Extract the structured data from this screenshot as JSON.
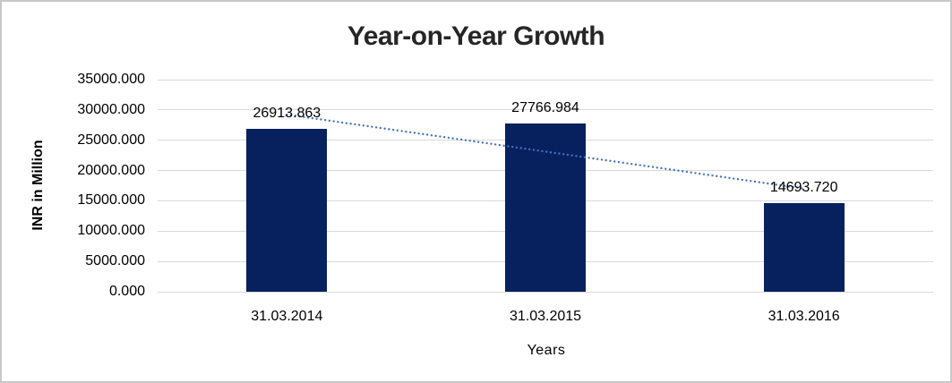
{
  "chart_data": {
    "type": "bar",
    "title": "Year-on-Year Growth",
    "categories": [
      "31.03.2014",
      "31.03.2015",
      "31.03.2016"
    ],
    "values": [
      26913.863,
      27766.984,
      14693.72
    ],
    "data_labels": [
      "26913.863",
      "27766.984",
      "14693.720"
    ],
    "xlabel": "Years",
    "ylabel": "INR in Million",
    "ylim": [
      0,
      35000
    ],
    "ytick_step": 5000,
    "yticks": [
      {
        "value": 0,
        "label": "0.000"
      },
      {
        "value": 5000,
        "label": "5000.000"
      },
      {
        "value": 10000,
        "label": "10000.000"
      },
      {
        "value": 15000,
        "label": "15000.000"
      },
      {
        "value": 20000,
        "label": "20000.000"
      },
      {
        "value": 25000,
        "label": "25000.000"
      },
      {
        "value": 30000,
        "label": "30000.000"
      },
      {
        "value": 35000,
        "label": "35000.000"
      }
    ],
    "grid": true,
    "legend": "none",
    "trendline": {
      "type": "linear",
      "style": "dotted",
      "color": "#4473BE"
    },
    "colors": {
      "bar": "#06215E",
      "gridline": "#D9D9D9",
      "title": "#262626",
      "text": "#000000",
      "border": "#C8C8C8",
      "background": "#FFFFFF"
    }
  }
}
